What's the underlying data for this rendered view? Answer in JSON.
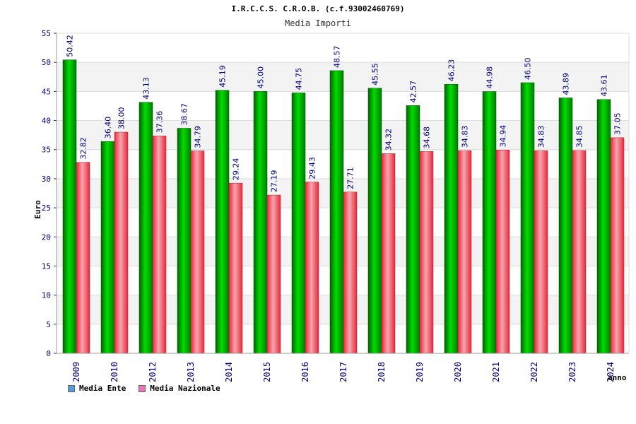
{
  "chart_data": {
    "type": "bar",
    "title": "I.R.C.C.S. C.R.O.B. (c.f.93002460769)",
    "subtitle": "Media Importi",
    "xlabel": "anno",
    "ylabel": "Euro",
    "ylim": [
      0,
      55
    ],
    "yticks": [
      0,
      5,
      10,
      15,
      20,
      25,
      30,
      35,
      40,
      45,
      50,
      55
    ],
    "grid": true,
    "legend_position": "bottom-left",
    "categories": [
      "2009",
      "2010",
      "2012",
      "2013",
      "2014",
      "2015",
      "2016",
      "2017",
      "2018",
      "2019",
      "2020",
      "2021",
      "2022",
      "2023",
      "2024"
    ],
    "series": [
      {
        "name": "Media Ente",
        "legend_color": "#5b9bd5",
        "bar_color": "#00aa00",
        "values": [
          50.42,
          36.4,
          43.13,
          38.67,
          45.19,
          45.0,
          44.75,
          48.57,
          45.55,
          42.57,
          46.23,
          44.98,
          46.5,
          43.89,
          43.61
        ],
        "labels": [
          "50.42",
          "36.40",
          "43.13",
          "38.67",
          "45.19",
          "45.00",
          "44.75",
          "48.57",
          "45.55",
          "42.57",
          "46.23",
          "44.98",
          "46.50",
          "43.89",
          "43.61"
        ]
      },
      {
        "name": "Media Nazionale",
        "legend_color": "#e377b0",
        "bar_color": "#e8414f",
        "values": [
          32.82,
          38.0,
          37.36,
          34.79,
          29.24,
          27.19,
          29.43,
          27.71,
          34.32,
          34.68,
          34.83,
          34.94,
          34.83,
          34.85,
          37.05
        ],
        "labels": [
          "32.82",
          "38.00",
          "37.36",
          "34.79",
          "29.24",
          "27.19",
          "29.43",
          "27.71",
          "34.32",
          "34.68",
          "34.83",
          "34.94",
          "34.83",
          "34.85",
          "37.05"
        ]
      }
    ]
  }
}
